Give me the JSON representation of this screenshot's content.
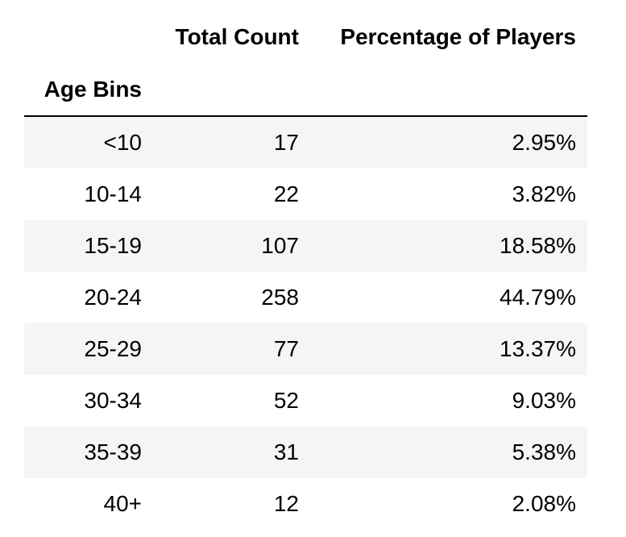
{
  "table": {
    "columns": [
      "Total Count",
      "Percentage of Players"
    ],
    "index_name": "Age Bins",
    "rows": [
      {
        "bin": "<10",
        "count": "17",
        "percent": "2.95%"
      },
      {
        "bin": "10-14",
        "count": "22",
        "percent": "3.82%"
      },
      {
        "bin": "15-19",
        "count": "107",
        "percent": "18.58%"
      },
      {
        "bin": "20-24",
        "count": "258",
        "percent": "44.79%"
      },
      {
        "bin": "25-29",
        "count": "77",
        "percent": "13.37%"
      },
      {
        "bin": "30-34",
        "count": "52",
        "percent": "9.03%"
      },
      {
        "bin": "35-39",
        "count": "31",
        "percent": "5.38%"
      },
      {
        "bin": "40+",
        "count": "12",
        "percent": "2.08%"
      }
    ]
  },
  "colors": {
    "stripe": "#f5f5f5",
    "background": "#ffffff",
    "rule": "#000000"
  }
}
